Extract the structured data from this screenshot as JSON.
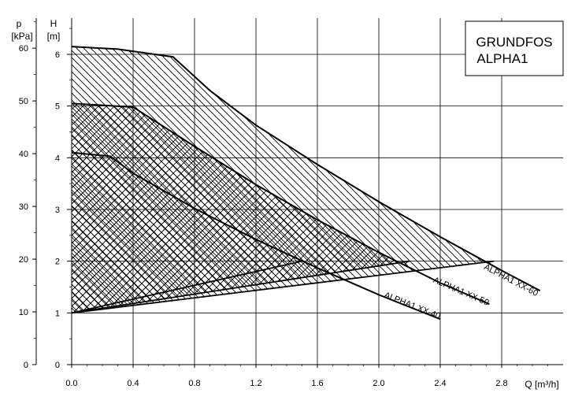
{
  "chart_data": {
    "type": "line",
    "title": "",
    "brand_box": {
      "line1": "GRUNDFOS",
      "line2": "ALPHA1"
    },
    "xlabel": "Q [m³/h]",
    "ylabel_left": {
      "symbol": "p",
      "unit": "[kPa]"
    },
    "ylabel_inner": {
      "symbol": "H",
      "unit": "[m]"
    },
    "xlim": [
      0,
      3.2
    ],
    "ylim_m": [
      0,
      6.7
    ],
    "ylim_kpa": [
      0,
      65.7
    ],
    "x_ticks": [
      0.0,
      0.4,
      0.8,
      1.2,
      1.6,
      2.0,
      2.4,
      2.8
    ],
    "x_tick_labels": [
      "0.0",
      "0.4",
      "0.8",
      "1.2",
      "1.6",
      "2.0",
      "2.4",
      "2.8"
    ],
    "y_ticks_m": [
      0,
      1,
      2,
      3,
      4,
      5,
      6
    ],
    "y_tick_labels_m": [
      "0",
      "1",
      "2",
      "3",
      "4",
      "5",
      "6"
    ],
    "y_ticks_kpa": [
      0,
      10,
      20,
      30,
      40,
      50,
      60
    ],
    "y_tick_labels_kpa": [
      "0",
      "10",
      "20",
      "30",
      "40",
      "50",
      "60"
    ],
    "grid": true,
    "series": [
      {
        "name": "ALPHA1 XX-40",
        "max_curve": {
          "x": [
            0.0,
            0.25,
            0.4,
            0.8,
            1.2,
            1.6,
            2.0,
            2.4
          ],
          "y": [
            4.1,
            4.03,
            3.7,
            3.02,
            2.42,
            1.87,
            1.35,
            0.88
          ]
        },
        "min_curve": {
          "x": [
            0.0,
            1.5
          ],
          "y": [
            1.0,
            2.0
          ]
        },
        "hatch": "diagonal"
      },
      {
        "name": "ALPHA1 XX-50",
        "max_curve": {
          "x": [
            0.0,
            0.4,
            0.8,
            1.2,
            1.6,
            2.0,
            2.4,
            2.72
          ],
          "y": [
            5.05,
            4.98,
            4.22,
            3.48,
            2.8,
            2.17,
            1.58,
            1.17
          ]
        },
        "min_curve": {
          "x": [
            0.0,
            2.2
          ],
          "y": [
            1.0,
            2.0
          ]
        },
        "hatch": "cross"
      },
      {
        "name": "ALPHA1 XX-60",
        "max_curve": {
          "x": [
            0.0,
            0.3,
            0.66,
            0.9,
            1.2,
            1.6,
            2.0,
            2.4,
            2.8,
            3.05
          ],
          "y": [
            6.15,
            6.1,
            5.95,
            5.3,
            4.63,
            3.87,
            3.15,
            2.47,
            1.82,
            1.43
          ]
        },
        "min_curve": {
          "x": [
            0.0,
            2.75
          ],
          "y": [
            1.0,
            2.0
          ]
        },
        "hatch": "diagonal-back"
      }
    ]
  }
}
